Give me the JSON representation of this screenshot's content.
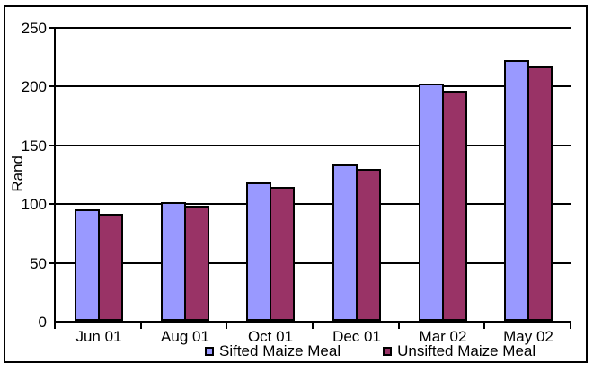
{
  "chart_data": {
    "type": "bar",
    "title": "",
    "ylabel": "Rand",
    "xlabel": "",
    "categories": [
      "Jun 01",
      "Aug 01",
      "Oct 01",
      "Dec 01",
      "Mar 02",
      "May 02"
    ],
    "series": [
      {
        "name": "Sifted Maize Meal",
        "color": "#9999FF",
        "values": [
          95,
          101,
          118,
          133,
          202,
          222
        ]
      },
      {
        "name": "Unsifted Maize Meal",
        "color": "#993366",
        "values": [
          91,
          98,
          114,
          129,
          196,
          216
        ]
      }
    ],
    "ylim": [
      0,
      250
    ],
    "yticks": [
      0,
      50,
      100,
      150,
      200,
      250
    ],
    "grid": true,
    "legend_position": "bottom",
    "axis_color": "#000000",
    "background_color": "#FFFFFF"
  }
}
